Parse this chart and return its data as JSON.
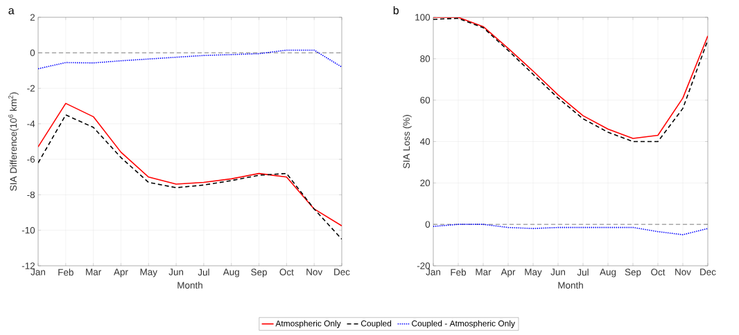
{
  "chart_data": [
    {
      "type": "line",
      "title": "a",
      "xlabel": "Month",
      "ylabel": "SIA Difference(10$^{6}$ km$^{2}$)",
      "categories": [
        "Jan",
        "Feb",
        "Mar",
        "Apr",
        "May",
        "Jun",
        "Jul",
        "Aug",
        "Sep",
        "Oct",
        "Nov",
        "Dec"
      ],
      "series": [
        {
          "name": "Atmospheric Only",
          "color": "#ff0000",
          "line_style": "solid",
          "values": [
            -5.3,
            -2.85,
            -3.6,
            -5.6,
            -7.0,
            -7.4,
            -7.3,
            -7.1,
            -6.8,
            -7.0,
            -8.8,
            -9.75
          ]
        },
        {
          "name": "Coupled",
          "color": "#000000",
          "line_style": "dashed",
          "values": [
            -6.2,
            -3.5,
            -4.2,
            -5.9,
            -7.3,
            -7.6,
            -7.45,
            -7.2,
            -6.9,
            -6.8,
            -8.8,
            -10.5
          ]
        },
        {
          "name": "Coupled - Atmospheric Only",
          "color": "#0000ff",
          "line_style": "dotted",
          "values": [
            -0.9,
            -0.55,
            -0.57,
            -0.45,
            -0.35,
            -0.25,
            -0.15,
            -0.1,
            -0.05,
            0.15,
            0.15,
            -0.8
          ]
        }
      ],
      "ylim": [
        -12,
        2
      ],
      "yticks": [
        -12,
        -10,
        -8,
        -6,
        -4,
        -2,
        0,
        2
      ],
      "grid": true,
      "legend": "bottom",
      "ref_lines": [
        {
          "axis": "y",
          "value": 0,
          "color": "#808080",
          "line_style": "dashed"
        }
      ]
    },
    {
      "type": "line",
      "title": "b",
      "xlabel": "Month",
      "ylabel": "SIA Loss (%)",
      "categories": [
        "Jan",
        "Feb",
        "Mar",
        "Apr",
        "May",
        "Jun",
        "Jul",
        "Aug",
        "Sep",
        "Oct",
        "Nov",
        "Dec"
      ],
      "series": [
        {
          "color": "#ff0000",
          "line_style": "solid",
          "values": [
            100,
            100,
            95.5,
            85,
            74,
            62.5,
            52.5,
            46,
            41.5,
            43,
            61,
            91
          ]
        },
        {
          "color": "#000000",
          "line_style": "dashed",
          "values": [
            99,
            99.5,
            95,
            84,
            72.5,
            61,
            51,
            44.5,
            40,
            40,
            56,
            89
          ]
        },
        {
          "color": "#0000ff",
          "line_style": "dotted",
          "values": [
            -1,
            0,
            0,
            -1.5,
            -2,
            -1.5,
            -1.5,
            -1.5,
            -1.5,
            -3.5,
            -5,
            -2
          ]
        }
      ],
      "ylim": [
        -20,
        100
      ],
      "yticks": [
        -20,
        0,
        20,
        40,
        60,
        80,
        100
      ],
      "grid": true,
      "ref_lines": [
        {
          "axis": "y",
          "value": 0,
          "color": "#808080",
          "line_style": "dashed"
        }
      ]
    }
  ]
}
